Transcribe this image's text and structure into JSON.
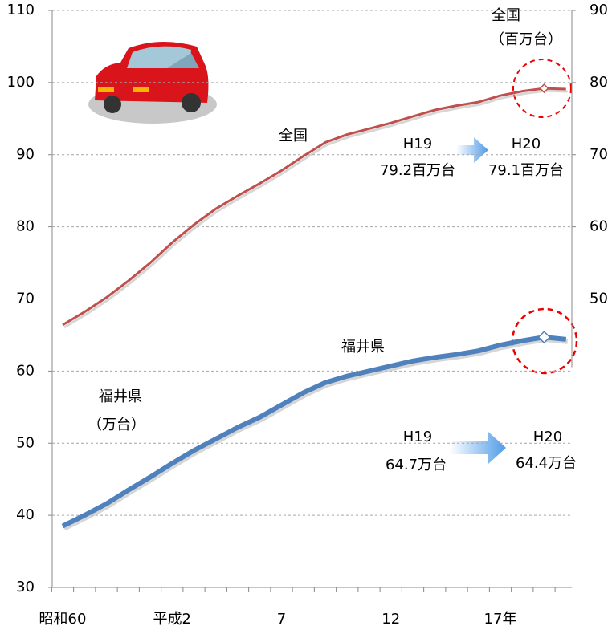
{
  "chart_data": {
    "type": "line",
    "categories": [
      "昭和60",
      null,
      null,
      null,
      null,
      "平成2",
      null,
      null,
      null,
      null,
      "7",
      null,
      null,
      null,
      null,
      "12",
      null,
      null,
      null,
      null,
      "17年",
      null,
      null,
      null
    ],
    "series": [
      {
        "name": "全国",
        "color": "#c0504d",
        "axis": "y2",
        "values": [
          46.4,
          48.2,
          50.2,
          52.5,
          55,
          57.8,
          60.3,
          62.5,
          64.3,
          66,
          67.8,
          69.8,
          71.7,
          72.8,
          73.6,
          74.4,
          75.3,
          76.2,
          76.8,
          77.3,
          78.2,
          78.8,
          79.2,
          79.1
        ],
        "value_labels": [
          null,
          null,
          null,
          null,
          null,
          null,
          null,
          null,
          null,
          null,
          null,
          null,
          null,
          null,
          null,
          null,
          null,
          null,
          null,
          null,
          null,
          null,
          "79.2百万台",
          "79.1百万台"
        ]
      },
      {
        "name": "福井県",
        "color": "#4f81bd",
        "values": [
          38.5,
          40,
          41.6,
          43.5,
          45.3,
          47.2,
          49,
          50.6,
          52.2,
          53.6,
          55.3,
          57,
          58.4,
          59.3,
          60,
          60.7,
          61.4,
          61.9,
          62.3,
          62.8,
          63.6,
          64.2,
          64.7,
          64.4
        ],
        "value_labels": [
          null,
          null,
          null,
          null,
          null,
          null,
          null,
          null,
          null,
          null,
          null,
          null,
          null,
          null,
          null,
          null,
          null,
          null,
          null,
          null,
          null,
          null,
          "64.7万台",
          "64.4万台"
        ]
      }
    ],
    "ylim": [
      30,
      110
    ],
    "yticks": [
      30,
      40,
      50,
      60,
      70,
      80,
      90,
      100,
      110
    ],
    "y2lim": [
      10,
      90
    ],
    "y2ticks": [
      50,
      60,
      70,
      80,
      90
    ],
    "grid": true,
    "annotations": [
      "全国",
      "（百万台）",
      "福井県",
      "（万台）",
      "H19",
      "H20",
      "H19",
      "H20"
    ]
  }
}
